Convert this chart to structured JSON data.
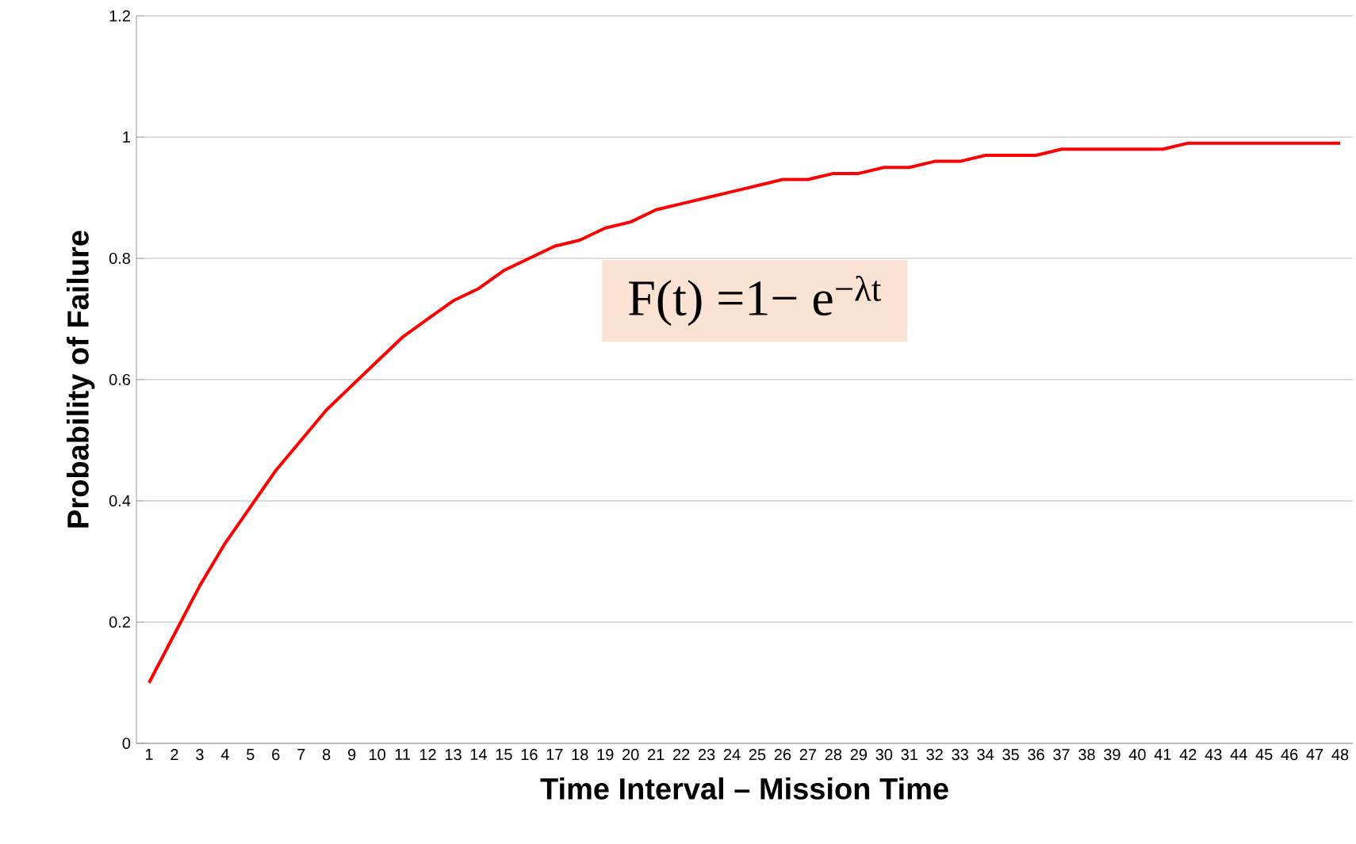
{
  "chart_data": {
    "type": "line",
    "xlabel": "Time Interval – Mission Time",
    "ylabel": "Probability of Failure",
    "categories": [
      "1",
      "2",
      "3",
      "4",
      "5",
      "6",
      "7",
      "8",
      "9",
      "10",
      "11",
      "12",
      "13",
      "14",
      "15",
      "16",
      "17",
      "18",
      "19",
      "20",
      "21",
      "22",
      "23",
      "24",
      "25",
      "26",
      "27",
      "28",
      "29",
      "30",
      "31",
      "32",
      "33",
      "34",
      "35",
      "36",
      "37",
      "38",
      "39",
      "40",
      "41",
      "42",
      "43",
      "44",
      "45",
      "46",
      "47",
      "48"
    ],
    "values": [
      0.1,
      0.18,
      0.26,
      0.33,
      0.39,
      0.45,
      0.5,
      0.55,
      0.59,
      0.63,
      0.67,
      0.7,
      0.73,
      0.75,
      0.78,
      0.8,
      0.82,
      0.83,
      0.85,
      0.86,
      0.88,
      0.89,
      0.9,
      0.91,
      0.92,
      0.93,
      0.93,
      0.94,
      0.94,
      0.95,
      0.95,
      0.96,
      0.96,
      0.97,
      0.97,
      0.97,
      0.98,
      0.98,
      0.98,
      0.98,
      0.98,
      0.99,
      0.99,
      0.99,
      0.99,
      0.99,
      0.99,
      0.99
    ],
    "color": "#ff0000",
    "ylim": [
      0,
      1.2
    ],
    "yticks": [
      0,
      0.2,
      0.4,
      0.6,
      0.8,
      1,
      1.2
    ],
    "grid": "y",
    "annotations": [
      "F(t) =1− e$^{−λt}$"
    ]
  }
}
